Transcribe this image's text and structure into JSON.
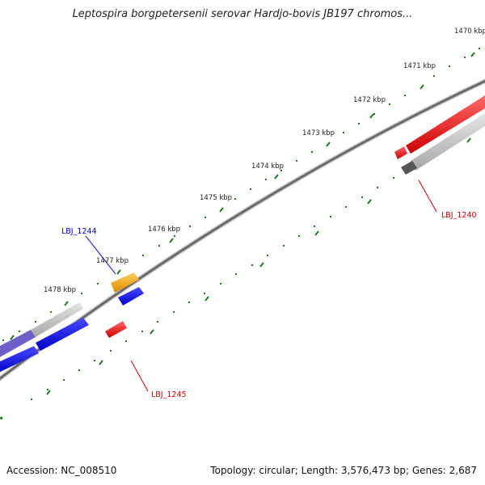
{
  "title": "Leptospira borgpetersenii serovar Hardjo-bovis JB197 chromos...",
  "footer": {
    "accession": "Accession: NC_008510",
    "summary": "Topology: circular; Length: 3,576,473 bp; Genes: 2,687"
  },
  "ruler_labels": [
    "1470 kbp",
    "1471 kbp",
    "1472 kbp",
    "1473 kbp",
    "1474 kbp",
    "1475 kbp",
    "1476 kbp",
    "1477 kbp",
    "1478 kbp"
  ],
  "gene_labels": {
    "lbj_1244": "LBJ_1244",
    "lbj_1240": "LBJ_1240",
    "lbj_1245": "LBJ_1245"
  },
  "colors": {
    "backbone": "#777777",
    "ticks": "#1a7a1a",
    "forward_gene": "#0000ee",
    "reverse_gene": "#ee0000",
    "highlight_gene": "#f0a000",
    "pseudo_gene": "#bbbbbb",
    "label_blue": "#0000cc",
    "label_red": "#cc0000"
  }
}
